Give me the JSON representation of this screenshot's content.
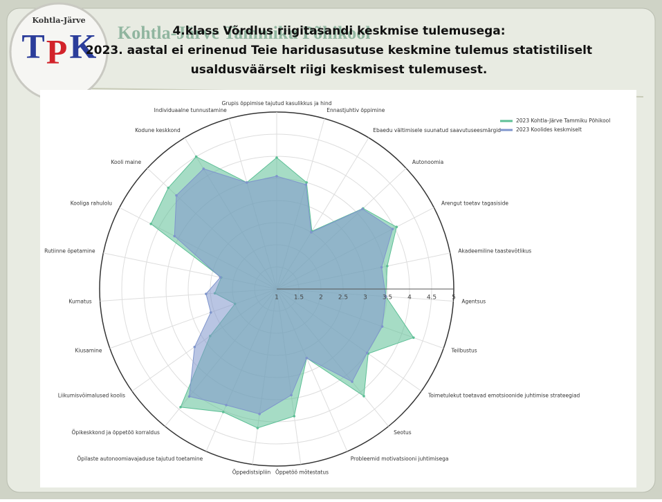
{
  "header": {
    "logo_top": "Kohtla-Järve",
    "logo_letters": [
      "T",
      "P",
      "K"
    ],
    "watermark": "Kohtla-Järve Tammiku Põhikool",
    "title_lines": [
      "4.klass Võrdlus riigitasandi keskmise tulemusega:",
      "2023. aastal ei erinenud Teie haridusasutuse keskmine tulemus statistiliselt",
      "usaldusväärselt riigi keskmisest tulemusest."
    ]
  },
  "chart_data": {
    "type": "radar",
    "categories": [
      "Grupis õppimise tajutud kasulikkus ja hind",
      "Ennastjuhtiv õppimine",
      "Ebaedu vältimisele suunatud saavutuseesmärgid",
      "Autonoomia",
      "Arengut toetav tagasiside",
      "Akadeemiline taastevõtlikus",
      "Agentsus",
      "Teilbustus",
      "Toimetulekut toetavad emotsioonide juhtimise strateegiad",
      "Seotus",
      "Probleemid motivatsiooni juhtimisega",
      "Õppetöö mõtestatus",
      "Õppedistsipliin",
      "Õpilaste autonoomiavajaduse tajutud toetamine",
      "Õpikeskkond ja õppetöö korraldus",
      "Liikumisvõimalused koolis",
      "Kiusamine",
      "Kurnatus",
      "Rutiinne õpetamine",
      "Kooliga rahulolu",
      "Kooli maine",
      "Kodune keskkond",
      "Individuaalne tunnustamine"
    ],
    "series": [
      {
        "name": "2023 Kohtla-Järve Tammiku Põhikool",
        "color": "#5cbf95",
        "values": [
          3.97,
          3.5,
          2.53,
          3.67,
          4.05,
          3.55,
          3.47,
          4.28,
          3.53,
          4.12,
          2.7,
          3.9,
          4.17,
          4.03,
          4.44,
          2.84,
          2.0,
          2.4,
          2.28,
          4.2,
          4.35,
          4.5,
          3.5
        ]
      },
      {
        "name": "2023 Koolides keskmiselt",
        "color": "#7f95cc",
        "values": [
          3.55,
          3.45,
          2.5,
          3.65,
          3.95,
          3.42,
          3.47,
          3.53,
          3.5,
          3.7,
          2.7,
          3.42,
          3.85,
          3.86,
          4.13,
          3.27,
          2.58,
          2.6,
          2.3,
          3.6,
          4.1,
          4.18,
          3.5
        ]
      }
    ],
    "rlim": [
      1,
      5
    ],
    "rticks": [
      1,
      1.5,
      2,
      2.5,
      3,
      3.5,
      4,
      4.5,
      5
    ],
    "grid": true,
    "legend": "top-right"
  }
}
